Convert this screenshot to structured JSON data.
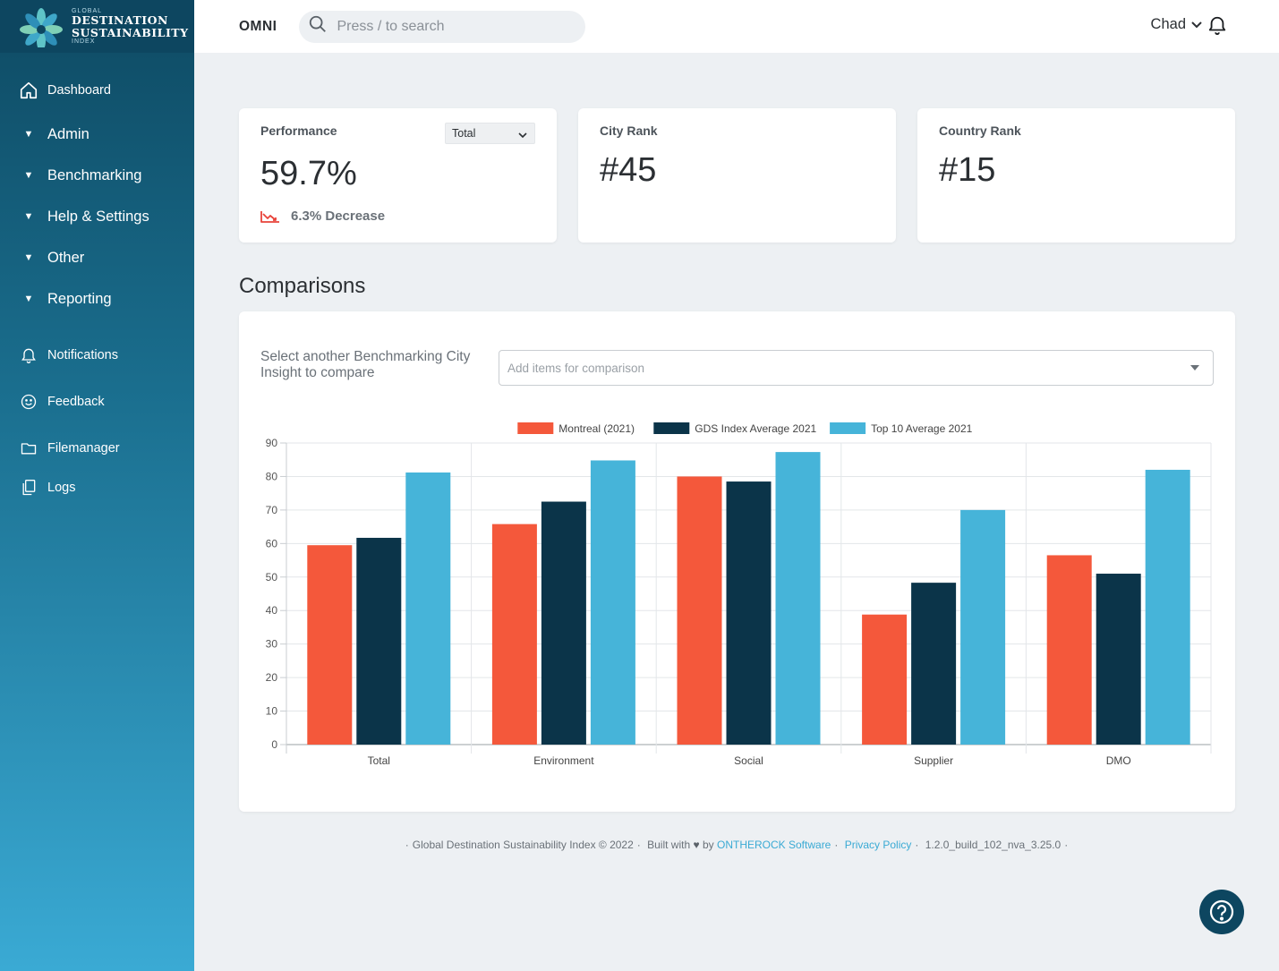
{
  "brand": {
    "line1": "GLOBAL",
    "line2": "DESTINATION",
    "line3": "SUSTAINABILITY",
    "line4": "INDEX"
  },
  "sidebar": {
    "items": [
      {
        "label": "Dashboard",
        "icon": "home-icon"
      },
      {
        "label": "Admin",
        "icon": "caret-down-icon"
      },
      {
        "label": "Benchmarking",
        "icon": "caret-down-icon"
      },
      {
        "label": "Help & Settings",
        "icon": "caret-down-icon"
      },
      {
        "label": "Other",
        "icon": "caret-down-icon"
      },
      {
        "label": "Reporting",
        "icon": "caret-down-icon"
      },
      {
        "label": "Notifications",
        "icon": "bell-icon"
      },
      {
        "label": "Feedback",
        "icon": "smile-icon"
      },
      {
        "label": "Filemanager",
        "icon": "folder-icon"
      },
      {
        "label": "Logs",
        "icon": "copy-icon"
      }
    ]
  },
  "topbar": {
    "app_name": "OMNI",
    "search_placeholder": "Press / to search",
    "user_name": "Chad"
  },
  "cards": {
    "performance": {
      "title": "Performance",
      "value": "59.7%",
      "select_value": "Total",
      "delta": "6.3% Decrease"
    },
    "city_rank": {
      "title": "City Rank",
      "value": "#45"
    },
    "country_rank": {
      "title": "Country Rank",
      "value": "#15"
    }
  },
  "comparisons": {
    "title": "Comparisons",
    "label": "Select another Benchmarking City Insight to compare",
    "placeholder": "Add items for comparison"
  },
  "colors": {
    "montreal": "#f4583b",
    "gds": "#0b3449",
    "top10": "#46b4d9",
    "accent": "#3aaad4",
    "sidebar_dark": "#0d4660"
  },
  "chart_data": {
    "type": "bar",
    "categories": [
      "Total",
      "Environment",
      "Social",
      "Supplier",
      "DMO"
    ],
    "series": [
      {
        "name": "Montreal (2021)",
        "color": "#f4583b",
        "values": [
          59.5,
          65.8,
          80,
          38.8,
          56.5
        ]
      },
      {
        "name": "GDS Index Average 2021",
        "color": "#0b3449",
        "values": [
          61.7,
          72.5,
          78.5,
          48.3,
          51
        ]
      },
      {
        "name": "Top 10 Average 2021",
        "color": "#46b4d9",
        "values": [
          81.2,
          84.8,
          87.3,
          70,
          82
        ]
      }
    ],
    "ylim": [
      0,
      90
    ],
    "yticks": [
      0,
      10,
      20,
      30,
      40,
      50,
      60,
      70,
      80,
      90
    ],
    "grid": true,
    "legend": "top"
  },
  "footer": {
    "copyright": "Global Destination Sustainability Index © 2022",
    "built_with": "Built with",
    "by": "by",
    "company": "ONTHEROCK Software",
    "privacy": "Privacy Policy",
    "version": "1.2.0_build_102_nva_3.25.0"
  }
}
